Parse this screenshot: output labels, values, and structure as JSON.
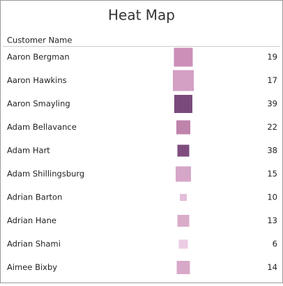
{
  "chart_data": {
    "type": "heatmap",
    "title": "Heat Map",
    "row_header": "Customer Name",
    "categories": [
      "Aaron Bergman",
      "Aaron Hawkins",
      "Aaron Smayling",
      "Adam Bellavance",
      "Adam Hart",
      "Adam Shillingsburg",
      "Adrian Barton",
      "Adrian Hane",
      "Adrian Shami",
      "Aimee Bixby"
    ],
    "values": [
      19,
      17,
      39,
      22,
      38,
      15,
      10,
      13,
      6,
      14
    ],
    "sizes": [
      27,
      30,
      26,
      20,
      17,
      22,
      10,
      17,
      13,
      19
    ],
    "colors": [
      "#cc8fb8",
      "#d4a0c4",
      "#7a4a7c",
      "#c083ac",
      "#7f4c80",
      "#d6a6c9",
      "#e3bedb",
      "#d9acca",
      "#eccbe5",
      "#d8a8c8"
    ]
  }
}
